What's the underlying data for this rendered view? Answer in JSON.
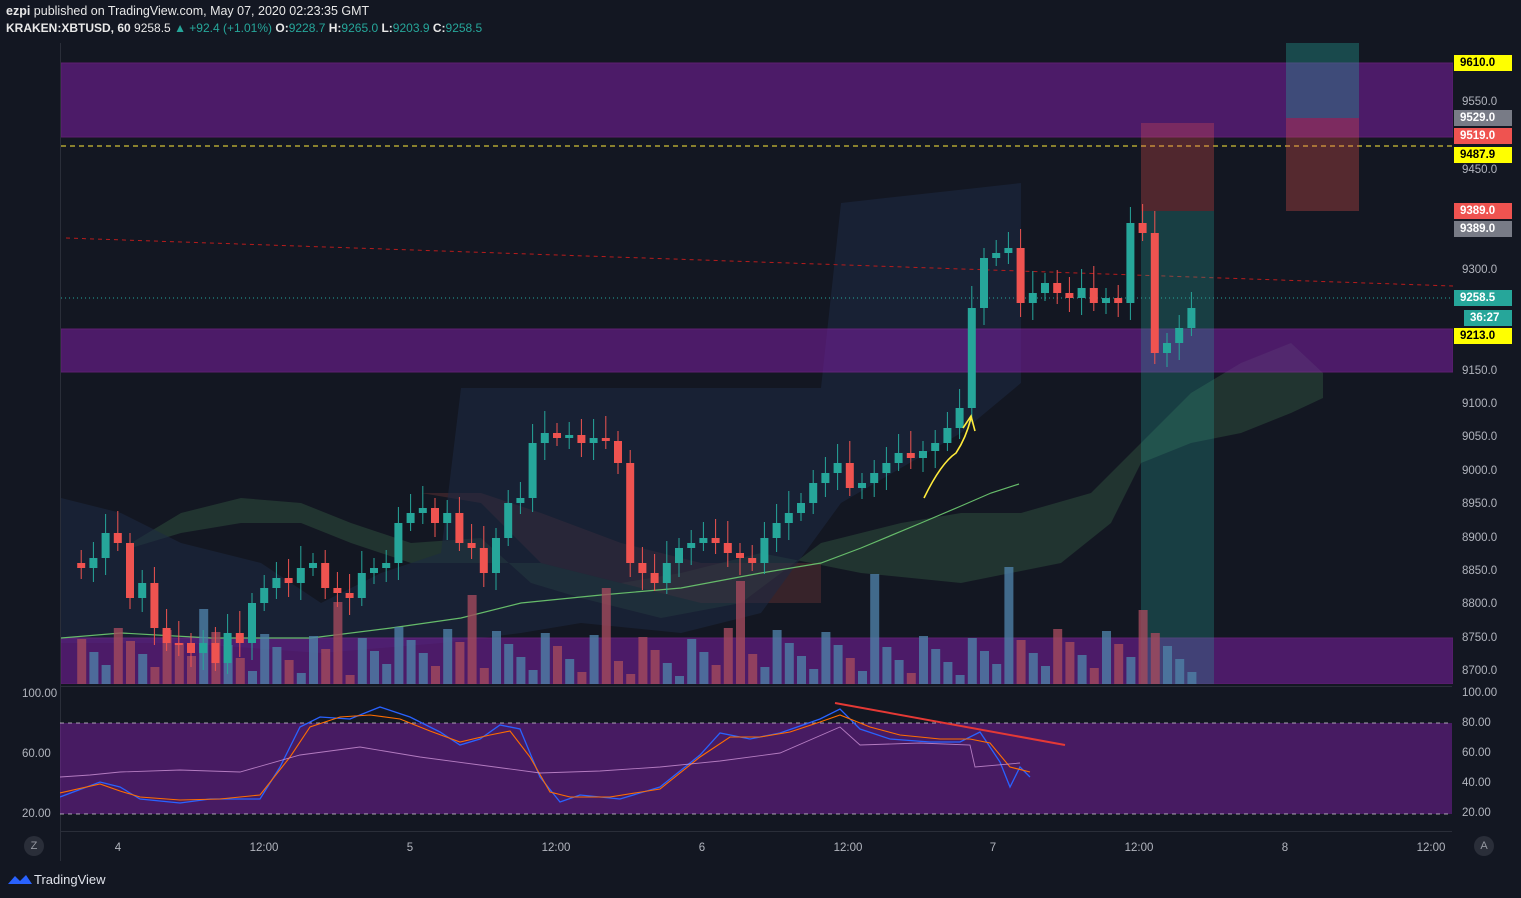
{
  "header": {
    "publisher": "ezpi",
    "published_text": "published on TradingView.com, May 07, 2020 02:23:35 GMT",
    "symbol": "KRAKEN:XBTUSD, 60",
    "last": "9258.5",
    "change": "▲ +92.4 (+1.01%)",
    "o_label": "O:",
    "o_value": "9228.7",
    "h_label": "H:",
    "h_value": "9265.0",
    "l_label": "L:",
    "l_value": "9203.9",
    "c_label": "C:",
    "c_value": "9258.5"
  },
  "price_axis": {
    "ticks": [
      "9550.0",
      "9450.0",
      "9300.0",
      "9150.0",
      "9100.0",
      "9050.0",
      "9000.0",
      "8950.0",
      "8900.0",
      "8850.0",
      "8800.0",
      "8750.0",
      "8700.0"
    ],
    "labels": [
      {
        "text": "9610.0",
        "bg": "#ffff00",
        "fg": "#000000"
      },
      {
        "text": "9529.0",
        "bg": "#787b86",
        "fg": "#ffffff"
      },
      {
        "text": "9519.0",
        "bg": "#ef5350",
        "fg": "#ffffff"
      },
      {
        "text": "9487.9",
        "bg": "#ffff00",
        "fg": "#000000"
      },
      {
        "text": "9389.0",
        "bg": "#ef5350",
        "fg": "#ffffff"
      },
      {
        "text": "9389.0",
        "bg": "#787b86",
        "fg": "#ffffff"
      },
      {
        "text": "9258.5",
        "bg": "#26a69a",
        "fg": "#ffffff"
      },
      {
        "text": "36:27",
        "bg": "#26a69a",
        "fg": "#ffffff"
      },
      {
        "text": "9213.0",
        "bg": "#ffff00",
        "fg": "#000000"
      }
    ]
  },
  "rsi_axis": {
    "ticks": [
      "100.00",
      "80.00",
      "60.00",
      "40.00",
      "20.00"
    ],
    "left_ticks": [
      "100.00",
      "60.00",
      "20.00"
    ]
  },
  "time_axis": {
    "ticks": [
      "4",
      "12:00",
      "5",
      "12:00",
      "6",
      "12:00",
      "7",
      "12:00",
      "8",
      "12:00"
    ]
  },
  "buttons": {
    "z": "Z",
    "a": "A"
  },
  "footer": {
    "brand": "TradingView"
  },
  "colors": {
    "up": "#26a69a",
    "down": "#ef5350",
    "zone": "#9c27b0",
    "background": "#131722"
  }
}
